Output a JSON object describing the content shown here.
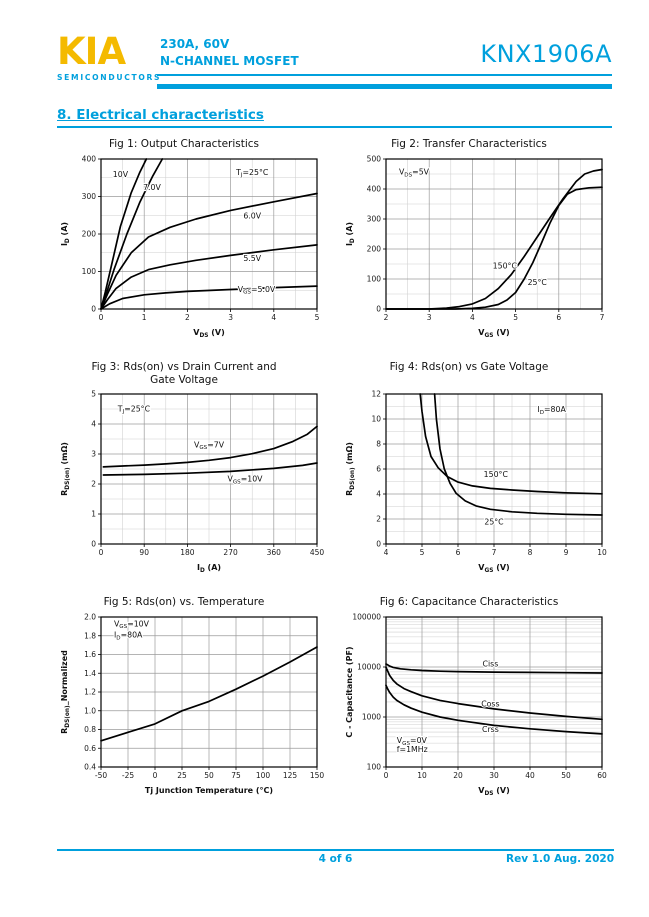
{
  "header": {
    "logo_text": "KIA",
    "logo_subtext": "SEMICONDUCTORS",
    "rating": "230A, 60V",
    "device_type": "N-CHANNEL MOSFET",
    "part_number": "KNX1906A"
  },
  "section_title": "8. Electrical characteristics",
  "colors": {
    "accent": "#00a0dd",
    "logo_gold": "#f4ba00",
    "curve": "#000000",
    "grid_major": "#9b9b9b",
    "grid_minor": "#cfcfcf"
  },
  "chart_data": [
    {
      "id": "fig1-output-characteristics",
      "type": "line",
      "title_lines": [
        "Fig 1: Output Characteristics"
      ],
      "xlabel": "V_{DS} (V)",
      "ylabel": "I_{D} (A)",
      "xlim": [
        0,
        5
      ],
      "ylim": [
        0,
        400
      ],
      "xticks": [
        0,
        1,
        2,
        3,
        4,
        5
      ],
      "yticks": [
        0,
        100,
        200,
        300,
        400
      ],
      "xminor": 0.5,
      "yminor": 50,
      "ylog": false,
      "annotations": [
        {
          "text": "T_{J}=25°C",
          "x": 3.5,
          "y": 358
        }
      ],
      "series": [
        {
          "name": "10V",
          "label": {
            "text": "10V",
            "x": 0.45,
            "y": 352
          },
          "x": [
            0,
            0.1,
            0.25,
            0.45,
            0.7,
            0.9,
            1.05
          ],
          "y": [
            0,
            45,
            120,
            220,
            310,
            365,
            400
          ]
        },
        {
          "name": "7.0V",
          "label": {
            "text": "7.0V",
            "x": 1.18,
            "y": 318
          },
          "x": [
            0,
            0.12,
            0.3,
            0.6,
            0.9,
            1.2,
            1.42
          ],
          "y": [
            0,
            40,
            105,
            200,
            285,
            355,
            400
          ]
        },
        {
          "name": "6.0V",
          "label": {
            "text": "6.0V",
            "x": 3.5,
            "y": 242
          },
          "x": [
            0,
            0.15,
            0.35,
            0.7,
            1.1,
            1.6,
            2.2,
            3.0,
            4.0,
            5.0
          ],
          "y": [
            0,
            40,
            90,
            150,
            192,
            218,
            240,
            263,
            286,
            308
          ]
        },
        {
          "name": "5.5V",
          "label": {
            "text": "5.5V",
            "x": 3.5,
            "y": 128
          },
          "x": [
            0,
            0.15,
            0.35,
            0.7,
            1.1,
            1.6,
            2.2,
            3.0,
            4.0,
            5.0
          ],
          "y": [
            0,
            25,
            55,
            85,
            105,
            118,
            130,
            143,
            158,
            171
          ]
        },
        {
          "name": "V_GS=5.0V",
          "label": {
            "text": "V_{GS}=5.0V",
            "x": 3.6,
            "y": 46
          },
          "x": [
            0,
            0.2,
            0.5,
            1.0,
            1.5,
            2.0,
            3.0,
            4.0,
            5.0
          ],
          "y": [
            0,
            14,
            28,
            38,
            43,
            47,
            52,
            57,
            61
          ]
        }
      ]
    },
    {
      "id": "fig2-transfer-characteristics",
      "type": "line",
      "title_lines": [
        "Fig 2: Transfer Characteristics"
      ],
      "xlabel": "V_{GS} (V)",
      "ylabel": "I_{D} (A)",
      "xlim": [
        2,
        7
      ],
      "ylim": [
        0,
        500
      ],
      "xticks": [
        2,
        3,
        4,
        5,
        6,
        7
      ],
      "yticks": [
        0,
        100,
        200,
        300,
        400,
        500
      ],
      "xminor": 0.5,
      "yminor": 50,
      "ylog": false,
      "annotations": [
        {
          "text": "V_{DS}=5V",
          "x": 2.3,
          "y": 448,
          "anchor": "start"
        }
      ],
      "series": [
        {
          "name": "150°C",
          "label": {
            "text": "150°C",
            "x": 4.75,
            "y": 135
          },
          "x": [
            2.0,
            3.0,
            3.4,
            3.7,
            4.0,
            4.3,
            4.6,
            4.9,
            5.2,
            5.5,
            5.8,
            6.1,
            6.4,
            6.6,
            6.8,
            7.0
          ],
          "y": [
            0,
            0,
            3,
            8,
            17,
            35,
            68,
            115,
            175,
            240,
            305,
            368,
            425,
            450,
            460,
            465
          ]
        },
        {
          "name": "25°C",
          "label": {
            "text": "25°C",
            "x": 5.5,
            "y": 80
          },
          "x": [
            2.0,
            3.6,
            4.0,
            4.3,
            4.6,
            4.8,
            5.0,
            5.2,
            5.4,
            5.6,
            5.8,
            6.0,
            6.2,
            6.4,
            6.7,
            7.0
          ],
          "y": [
            0,
            0,
            2,
            6,
            15,
            30,
            55,
            100,
            155,
            220,
            288,
            345,
            383,
            398,
            404,
            406
          ]
        }
      ]
    },
    {
      "id": "fig3-rdson-vs-drain-current",
      "type": "line",
      "title_lines": [
        "Fig 3: Rds(on) vs Drain Current and",
        "Gate Voltage"
      ],
      "xlabel": "I_{D} (A)",
      "ylabel": "R_{DS(on)} (mΩ)",
      "xlim": [
        0,
        450
      ],
      "ylim": [
        0,
        5
      ],
      "xticks": [
        0,
        90,
        180,
        270,
        360,
        450
      ],
      "yticks": [
        0,
        1,
        2,
        3,
        4,
        5
      ],
      "xminor": 45,
      "yminor": 0.5,
      "ylog": false,
      "annotations": [
        {
          "text": "T_{J}=25°C",
          "x": 35,
          "y": 4.42,
          "anchor": "start"
        }
      ],
      "series": [
        {
          "name": "V_GS=7V",
          "label": {
            "text": "V_{GS}=7V",
            "x": 225,
            "y": 3.22
          },
          "x": [
            5,
            45,
            90,
            135,
            180,
            225,
            270,
            315,
            360,
            400,
            430,
            450
          ],
          "y": [
            2.57,
            2.6,
            2.63,
            2.67,
            2.72,
            2.79,
            2.88,
            3.01,
            3.18,
            3.42,
            3.66,
            3.92
          ]
        },
        {
          "name": "V_GS=10V",
          "label": {
            "text": "V_{GS}=10V",
            "x": 300,
            "y": 2.08
          },
          "x": [
            5,
            90,
            180,
            270,
            360,
            420,
            450
          ],
          "y": [
            2.3,
            2.32,
            2.36,
            2.42,
            2.52,
            2.62,
            2.7
          ]
        }
      ]
    },
    {
      "id": "fig4-rdson-vs-gate-voltage",
      "type": "line",
      "title_lines": [
        "Fig 4: Rds(on) vs Gate Voltage"
      ],
      "xlabel": "V_{GS} (V)",
      "ylabel": "R_{DS(on)} (mΩ)",
      "xlim": [
        4,
        10
      ],
      "ylim": [
        0,
        12
      ],
      "xticks": [
        4,
        5,
        6,
        7,
        8,
        9,
        10
      ],
      "yticks": [
        0,
        2,
        4,
        6,
        8,
        10,
        12
      ],
      "xminor": 0.5,
      "yminor": 1,
      "ylog": false,
      "annotations": [
        {
          "text": "I_{D}=80A",
          "x": 8.6,
          "y": 10.55
        }
      ],
      "series": [
        {
          "name": "150°C",
          "label": {
            "text": "150°C",
            "x": 7.05,
            "y": 5.35
          },
          "x": [
            4.95,
            5.0,
            5.1,
            5.25,
            5.45,
            5.7,
            6.0,
            6.4,
            6.9,
            7.5,
            8.2,
            9.0,
            10.0
          ],
          "y": [
            12,
            10.6,
            8.6,
            7.0,
            6.1,
            5.4,
            4.95,
            4.65,
            4.45,
            4.32,
            4.2,
            4.1,
            4.02
          ]
        },
        {
          "name": "25°C",
          "label": {
            "text": "25°C",
            "x": 7.0,
            "y": 1.55
          },
          "x": [
            5.35,
            5.4,
            5.5,
            5.62,
            5.78,
            5.95,
            6.2,
            6.5,
            6.9,
            7.5,
            8.2,
            9.0,
            10.0
          ],
          "y": [
            12,
            10.0,
            7.6,
            6.0,
            4.85,
            4.05,
            3.45,
            3.05,
            2.78,
            2.58,
            2.46,
            2.38,
            2.32
          ]
        }
      ]
    },
    {
      "id": "fig5-rdson-vs-temperature",
      "type": "line",
      "title_lines": [
        "Fig 5: Rds(on) vs. Temperature"
      ],
      "xlabel": "Tj  Junction Temperature (°C)",
      "ylabel": "R_{DS(on)}_Normalized",
      "xlim": [
        -50,
        150
      ],
      "ylim": [
        0.4,
        2.0
      ],
      "xticks": [
        -50,
        -25,
        0,
        25,
        50,
        75,
        100,
        125,
        150
      ],
      "yticks": [
        0.4,
        0.6,
        0.8,
        1.0,
        1.2,
        1.4,
        1.6,
        1.8,
        2.0
      ],
      "ytick_labels": [
        "0.4",
        "0.6",
        "0.8",
        "1.0",
        "1.2",
        "1.4",
        "1.6",
        "1.8",
        "2.0"
      ],
      "xminor": null,
      "yminor": null,
      "ylog": false,
      "annotations": [
        {
          "text": "V_{GS}=10V",
          "x": -38,
          "y": 1.9,
          "anchor": "start"
        },
        {
          "text": "I_{D}=80A",
          "x": -38,
          "y": 1.78,
          "anchor": "start"
        }
      ],
      "series": [
        {
          "name": "Rds(on) normalized",
          "x": [
            -50,
            -25,
            0,
            25,
            50,
            75,
            100,
            125,
            150
          ],
          "y": [
            0.68,
            0.77,
            0.86,
            1.0,
            1.1,
            1.23,
            1.37,
            1.52,
            1.68
          ]
        }
      ]
    },
    {
      "id": "fig6-capacitance-characteristics",
      "type": "line",
      "title_lines": [
        "Fig 6: Capacitance Characteristics"
      ],
      "xlabel": "V_{DS} (V)",
      "ylabel": "C - Capacitance (PF)",
      "xlim": [
        0,
        60
      ],
      "ylim": [
        100,
        100000
      ],
      "xticks": [
        0,
        10,
        20,
        30,
        40,
        50,
        60
      ],
      "yticks": [
        100,
        1000,
        10000,
        100000
      ],
      "ytick_labels": [
        "100",
        "1000",
        "10000",
        "100000"
      ],
      "xminor": null,
      "yminor": null,
      "ylog": true,
      "annotations": [
        {
          "text": "V_{GS}=0V",
          "x": 3,
          "y": 300,
          "anchor": "start"
        },
        {
          "text": "f=1MHz",
          "x": 3,
          "y": 200,
          "anchor": "start"
        }
      ],
      "series": [
        {
          "name": "Ciss",
          "label": {
            "text": "Ciss",
            "x": 29,
            "y": 10300
          },
          "x": [
            0,
            0.5,
            1,
            2,
            4,
            7,
            10,
            15,
            20,
            30,
            40,
            50,
            60
          ],
          "y": [
            11500,
            11000,
            10400,
            9800,
            9200,
            8800,
            8500,
            8250,
            8100,
            7900,
            7800,
            7700,
            7600
          ]
        },
        {
          "name": "Coss",
          "label": {
            "text": "Coss",
            "x": 29,
            "y": 1620
          },
          "x": [
            0,
            0.5,
            1,
            2,
            3,
            5,
            7,
            10,
            15,
            20,
            30,
            40,
            50,
            60
          ],
          "y": [
            9800,
            8200,
            6800,
            5400,
            4600,
            3700,
            3200,
            2650,
            2150,
            1850,
            1450,
            1200,
            1030,
            900
          ]
        },
        {
          "name": "Crss",
          "label": {
            "text": "Crss",
            "x": 29,
            "y": 505
          },
          "x": [
            0,
            0.5,
            1,
            2,
            3,
            5,
            7,
            10,
            15,
            20,
            30,
            40,
            50,
            60
          ],
          "y": [
            4300,
            3600,
            3100,
            2500,
            2150,
            1750,
            1500,
            1250,
            1000,
            860,
            680,
            580,
            510,
            460
          ]
        }
      ]
    }
  ],
  "footer": {
    "page": "4 of 6",
    "revision": "Rev 1.0 Aug. 2020"
  }
}
